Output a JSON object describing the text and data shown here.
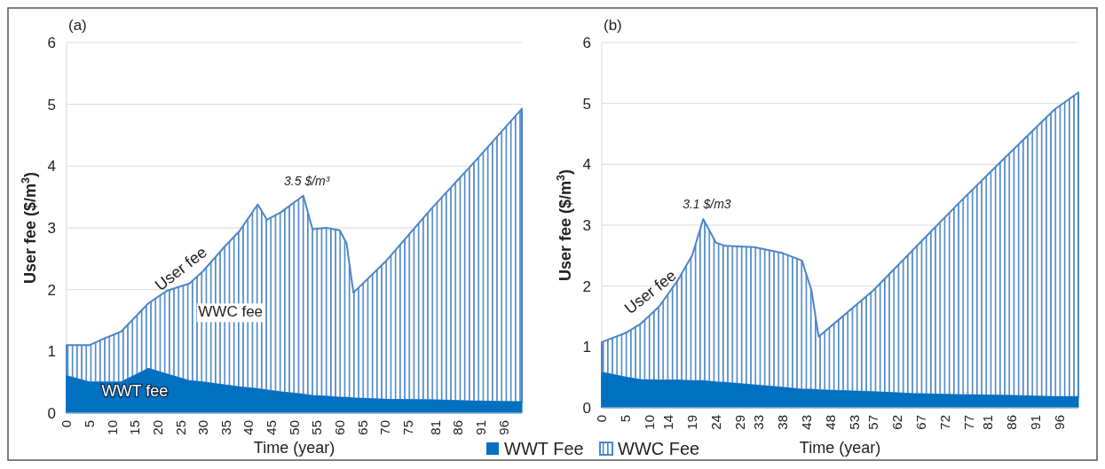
{
  "chart_data": [
    {
      "type": "area",
      "title": "(a)",
      "xlabel": "Time (year)",
      "ylabel": "User fee ($/m$^{3}$)",
      "stacked": true,
      "grid": "y",
      "legend": "bottom",
      "x": [
        0,
        5,
        8,
        12,
        18,
        22,
        27,
        30,
        35,
        38,
        42,
        44,
        47,
        52,
        54,
        57,
        60,
        61.5,
        63,
        70,
        80,
        90,
        100
      ],
      "xlim": [
        0,
        100
      ],
      "xticks": [
        0,
        5,
        10,
        15,
        20,
        25,
        30,
        35,
        40,
        45,
        50,
        55,
        60,
        65,
        70,
        75,
        81,
        86,
        91,
        96
      ],
      "ylim": [
        0,
        6
      ],
      "yticks": [
        0,
        1,
        2,
        3,
        4,
        5,
        6
      ],
      "series": [
        {
          "name": "WWT Fee",
          "color": "#0070c0",
          "values": [
            0.6,
            0.5,
            0.5,
            0.5,
            0.72,
            0.63,
            0.52,
            0.5,
            0.45,
            0.42,
            0.39,
            0.37,
            0.34,
            0.3,
            0.28,
            0.27,
            0.25,
            0.25,
            0.24,
            0.22,
            0.21,
            0.19,
            0.18
          ]
        },
        {
          "name": "WWC Fee",
          "color": "#4a86c8",
          "values": [
            0.5,
            0.6,
            0.7,
            0.82,
            1.06,
            1.35,
            1.58,
            1.8,
            2.27,
            2.53,
            2.99,
            2.76,
            2.91,
            3.22,
            2.7,
            2.73,
            2.71,
            2.5,
            1.71,
            2.23,
            3.09,
            3.91,
            4.75
          ]
        }
      ],
      "annotations": [
        {
          "text": "3.5 $/m³",
          "x": 52,
          "y": 3.52
        },
        {
          "text": "User fee",
          "x": 27,
          "y": 2.1
        },
        "WWC fee",
        "WWT fee"
      ]
    },
    {
      "type": "area",
      "title": "(b)",
      "xlabel": "Time (year)",
      "ylabel": "User fee ($/m$^{3}$)",
      "stacked": true,
      "grid": "y",
      "x": [
        0,
        5,
        8,
        12,
        16,
        19,
        21.3,
        24,
        26,
        32,
        38,
        42,
        44,
        45.5,
        49,
        57,
        65,
        75,
        85,
        95,
        100
      ],
      "xlim": [
        0,
        100
      ],
      "xticks": [
        0,
        5,
        10,
        14,
        19,
        24,
        29,
        33,
        38,
        43,
        48,
        53,
        57,
        62,
        67,
        72,
        77,
        81,
        86,
        91,
        96
      ],
      "ylim": [
        0,
        6
      ],
      "yticks": [
        0,
        1,
        2,
        3,
        4,
        5,
        6
      ],
      "series": [
        {
          "color": "#0070c0",
          "values": [
            0.58,
            0.5,
            0.46,
            0.45,
            0.45,
            0.44,
            0.44,
            0.42,
            0.41,
            0.37,
            0.33,
            0.3,
            0.3,
            0.29,
            0.28,
            0.26,
            0.23,
            0.21,
            0.2,
            0.18,
            0.18
          ]
        },
        {
          "color": "#4a86c8",
          "values": [
            0.5,
            0.73,
            0.91,
            1.21,
            1.65,
            2.07,
            2.66,
            2.29,
            2.25,
            2.27,
            2.21,
            2.12,
            1.63,
            0.88,
            1.12,
            1.67,
            2.34,
            3.16,
            3.94,
            4.72,
            5.0
          ]
        }
      ],
      "annotations": [
        {
          "text": "3.1 $/m3",
          "x": 21.3,
          "y": 3.1
        },
        {
          "text": "User fee",
          "x": 12,
          "y": 1.66
        }
      ]
    }
  ]
}
